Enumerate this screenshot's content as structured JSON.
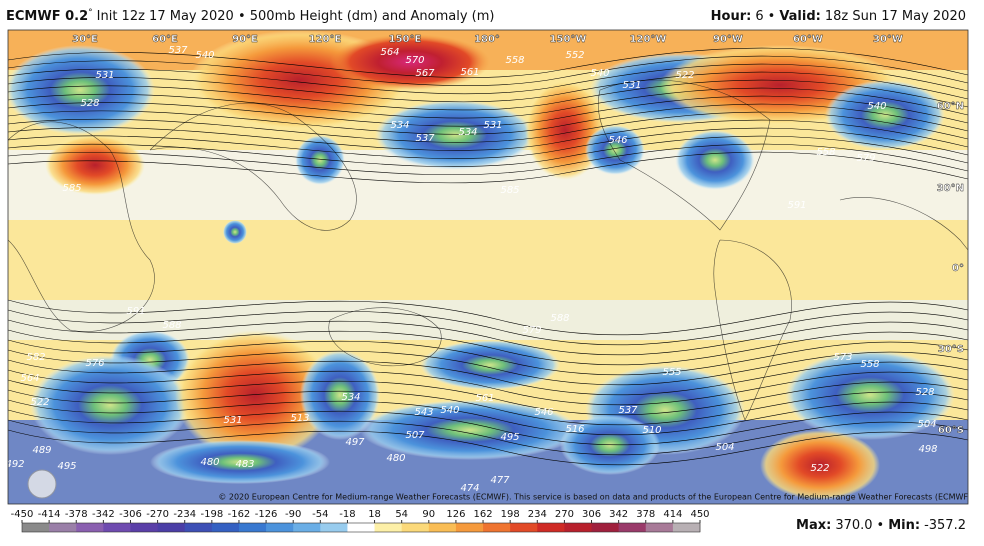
{
  "header": {
    "model": "ECMWF 0.2",
    "degree": "°",
    "description": "Init 12z 17 May 2020 • 500mb Height (dm) and Anomaly (m)",
    "hour_label": "Hour:",
    "hour": "6",
    "separator": "•",
    "valid_label": "Valid:",
    "valid": "18z Sun 17 May 2020"
  },
  "map": {
    "longitude_labels": [
      "30°E",
      "60°E",
      "90°E",
      "120°E",
      "150°E",
      "180°",
      "150°W",
      "120°W",
      "90°W",
      "60°W",
      "30°W"
    ],
    "latitude_labels": [
      "60°N",
      "30°N",
      "0°",
      "30°S",
      "60°S"
    ],
    "contour_labels": [
      "531",
      "528",
      "540",
      "537",
      "564",
      "570",
      "567",
      "561",
      "558",
      "534",
      "537",
      "534",
      "531",
      "585",
      "546",
      "531",
      "522",
      "540",
      "552",
      "591",
      "579",
      "558",
      "540",
      "585",
      "588",
      "591",
      "582",
      "576",
      "564",
      "522",
      "531",
      "513",
      "534",
      "543",
      "540",
      "546",
      "561",
      "507",
      "495",
      "497",
      "480",
      "483",
      "480",
      "474",
      "477",
      "489",
      "495",
      "492",
      "555",
      "537",
      "510",
      "504",
      "522",
      "558",
      "528",
      "504",
      "498",
      "573",
      "579",
      "588",
      "516"
    ],
    "credit": "© 2020 European Centre for Medium-range Weather Forecasts (ECMWF). This service is based on data and products of the European Centre for Medium-range Weather Forecasts (ECMWF)."
  },
  "colorbar": {
    "ticks": [
      -450,
      -414,
      -378,
      -342,
      -306,
      -270,
      -234,
      -198,
      -162,
      -126,
      -90,
      -54,
      -18,
      18,
      54,
      90,
      126,
      162,
      198,
      234,
      270,
      306,
      342,
      378,
      414,
      450
    ],
    "colors": [
      "#8a8a8a",
      "#9a7fa8",
      "#8a5fb0",
      "#6f4bb0",
      "#5a3fa8",
      "#4b3ea6",
      "#3d4fb5",
      "#3460c2",
      "#3878d0",
      "#4c93dc",
      "#6aaee6",
      "#98ccee",
      "#ffffff",
      "#fdf0a8",
      "#fbd97a",
      "#f9bd55",
      "#f59a3c",
      "#ef7430",
      "#e24a27",
      "#cf2a25",
      "#b8202c",
      "#a0203d",
      "#9a3a6a",
      "#a87a98",
      "#b8b0b4"
    ]
  },
  "footer": {
    "max_label": "Max:",
    "max": "370.0",
    "separator": "•",
    "min_label": "Min:",
    "min": "-357.2"
  }
}
